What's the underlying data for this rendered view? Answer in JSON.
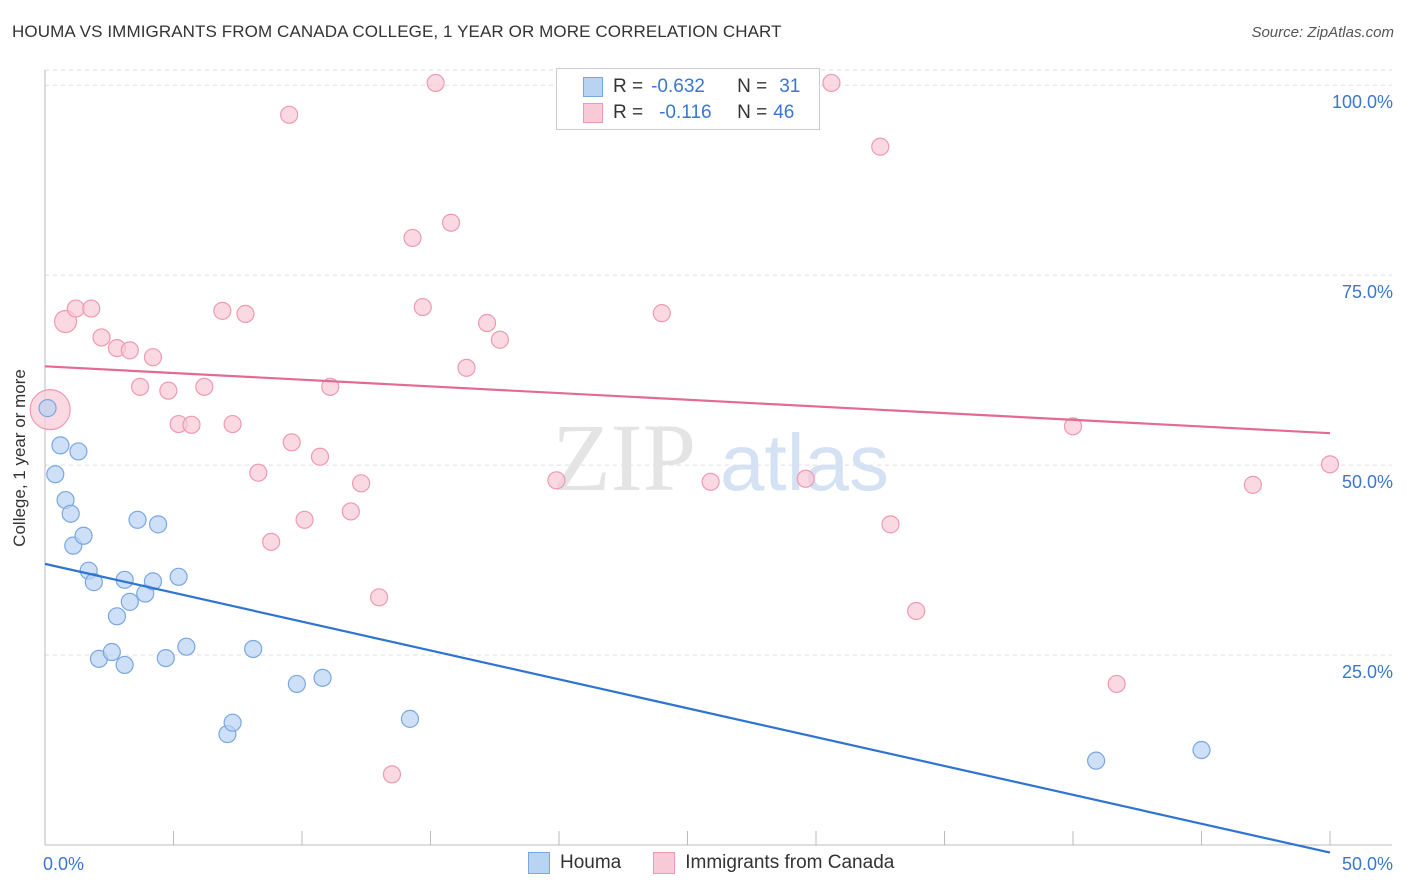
{
  "title": "HOUMA VS IMMIGRANTS FROM CANADA COLLEGE, 1 YEAR OR MORE CORRELATION CHART",
  "source": "Source: ZipAtlas.com",
  "watermark": {
    "zip": "ZIP",
    "atlas": "atlas"
  },
  "stats": {
    "row1": {
      "r_label": "R =",
      "r_value": "-0.632",
      "n_label": "N =",
      "n_value": "31"
    },
    "row2": {
      "r_label": "R =",
      "r_value": "-0.116",
      "n_label": "N =",
      "n_value": "46"
    }
  },
  "legend": {
    "series1": "Houma",
    "series2": "Immigrants from Canada"
  },
  "colors": {
    "houma_fill": "#b9d3f3",
    "houma_stroke": "#7ba7e0",
    "houma_line": "#2e74d0",
    "canada_fill": "#f8c9d6",
    "canada_stroke": "#ee9ab3",
    "canada_line": "#e36b93",
    "axis_text": "#3b76cf",
    "grid": "#dddddd"
  },
  "chart_data": {
    "type": "scatter",
    "title": "HOUMA VS IMMIGRANTS FROM CANADA COLLEGE, 1 YEAR OR MORE CORRELATION CHART",
    "xlabel": "",
    "ylabel": "College, 1 year or more",
    "xlim": [
      0,
      50
    ],
    "ylim": [
      0,
      102
    ],
    "x_tick_labels": [
      "0.0%",
      "50.0%"
    ],
    "y_ticks": [
      25,
      50,
      75,
      100
    ],
    "y_tick_labels": [
      "25.0%",
      "50.0%",
      "75.0%",
      "100.0%"
    ],
    "grid": true,
    "legend_position": "bottom",
    "series": [
      {
        "name": "Houma",
        "r": -0.632,
        "n": 31,
        "trend": {
          "x0": 0,
          "y0": 37.0,
          "x1": 50,
          "y1": -1.0
        },
        "points": [
          [
            0.1,
            57.5
          ],
          [
            0.4,
            48.8
          ],
          [
            0.6,
            52.6
          ],
          [
            0.8,
            45.4
          ],
          [
            1.0,
            43.6
          ],
          [
            1.1,
            39.4
          ],
          [
            1.3,
            51.8
          ],
          [
            1.5,
            40.7
          ],
          [
            1.7,
            36.1
          ],
          [
            1.9,
            34.6
          ],
          [
            2.1,
            24.5
          ],
          [
            2.6,
            25.4
          ],
          [
            2.8,
            30.1
          ],
          [
            3.1,
            23.7
          ],
          [
            3.1,
            34.9
          ],
          [
            3.3,
            32.0
          ],
          [
            3.6,
            42.8
          ],
          [
            3.9,
            33.1
          ],
          [
            4.2,
            34.7
          ],
          [
            4.4,
            42.2
          ],
          [
            4.7,
            24.6
          ],
          [
            5.2,
            35.3
          ],
          [
            5.5,
            26.1
          ],
          [
            7.1,
            14.6
          ],
          [
            7.3,
            16.1
          ],
          [
            8.1,
            25.8
          ],
          [
            9.8,
            21.2
          ],
          [
            10.8,
            22.0
          ],
          [
            14.2,
            16.6
          ],
          [
            40.9,
            11.1
          ],
          [
            45.0,
            12.5
          ]
        ]
      },
      {
        "name": "Immigrants from Canada",
        "r": -0.116,
        "n": 46,
        "trend": {
          "x0": 0,
          "y0": 63.0,
          "x1": 50,
          "y1": 54.2
        },
        "points": [
          [
            0.2,
            57.3
          ],
          [
            0.8,
            68.9
          ],
          [
            1.2,
            70.6
          ],
          [
            1.8,
            70.6
          ],
          [
            2.2,
            66.8
          ],
          [
            2.8,
            65.4
          ],
          [
            3.3,
            65.1
          ],
          [
            3.7,
            60.3
          ],
          [
            4.2,
            64.2
          ],
          [
            4.8,
            59.8
          ],
          [
            5.2,
            55.4
          ],
          [
            5.7,
            55.3
          ],
          [
            6.2,
            60.3
          ],
          [
            6.9,
            70.3
          ],
          [
            7.3,
            55.4
          ],
          [
            7.8,
            69.9
          ],
          [
            8.3,
            49.0
          ],
          [
            8.8,
            39.9
          ],
          [
            9.5,
            96.1
          ],
          [
            9.6,
            53.0
          ],
          [
            10.1,
            42.8
          ],
          [
            10.7,
            51.1
          ],
          [
            11.1,
            60.3
          ],
          [
            11.9,
            43.9
          ],
          [
            12.3,
            47.6
          ],
          [
            13.0,
            32.6
          ],
          [
            13.5,
            9.3
          ],
          [
            14.3,
            79.9
          ],
          [
            14.7,
            70.8
          ],
          [
            15.2,
            100.3
          ],
          [
            15.8,
            81.9
          ],
          [
            16.4,
            62.8
          ],
          [
            17.2,
            68.7
          ],
          [
            17.7,
            66.5
          ],
          [
            19.9,
            48.0
          ],
          [
            24.0,
            70.0
          ],
          [
            25.9,
            47.8
          ],
          [
            30.6,
            100.3
          ],
          [
            32.5,
            91.9
          ],
          [
            32.9,
            42.2
          ],
          [
            33.9,
            30.8
          ],
          [
            40.0,
            55.1
          ],
          [
            41.7,
            21.2
          ],
          [
            47.0,
            47.4
          ],
          [
            50.0,
            50.1
          ],
          [
            29.6,
            48.2
          ]
        ]
      }
    ]
  }
}
